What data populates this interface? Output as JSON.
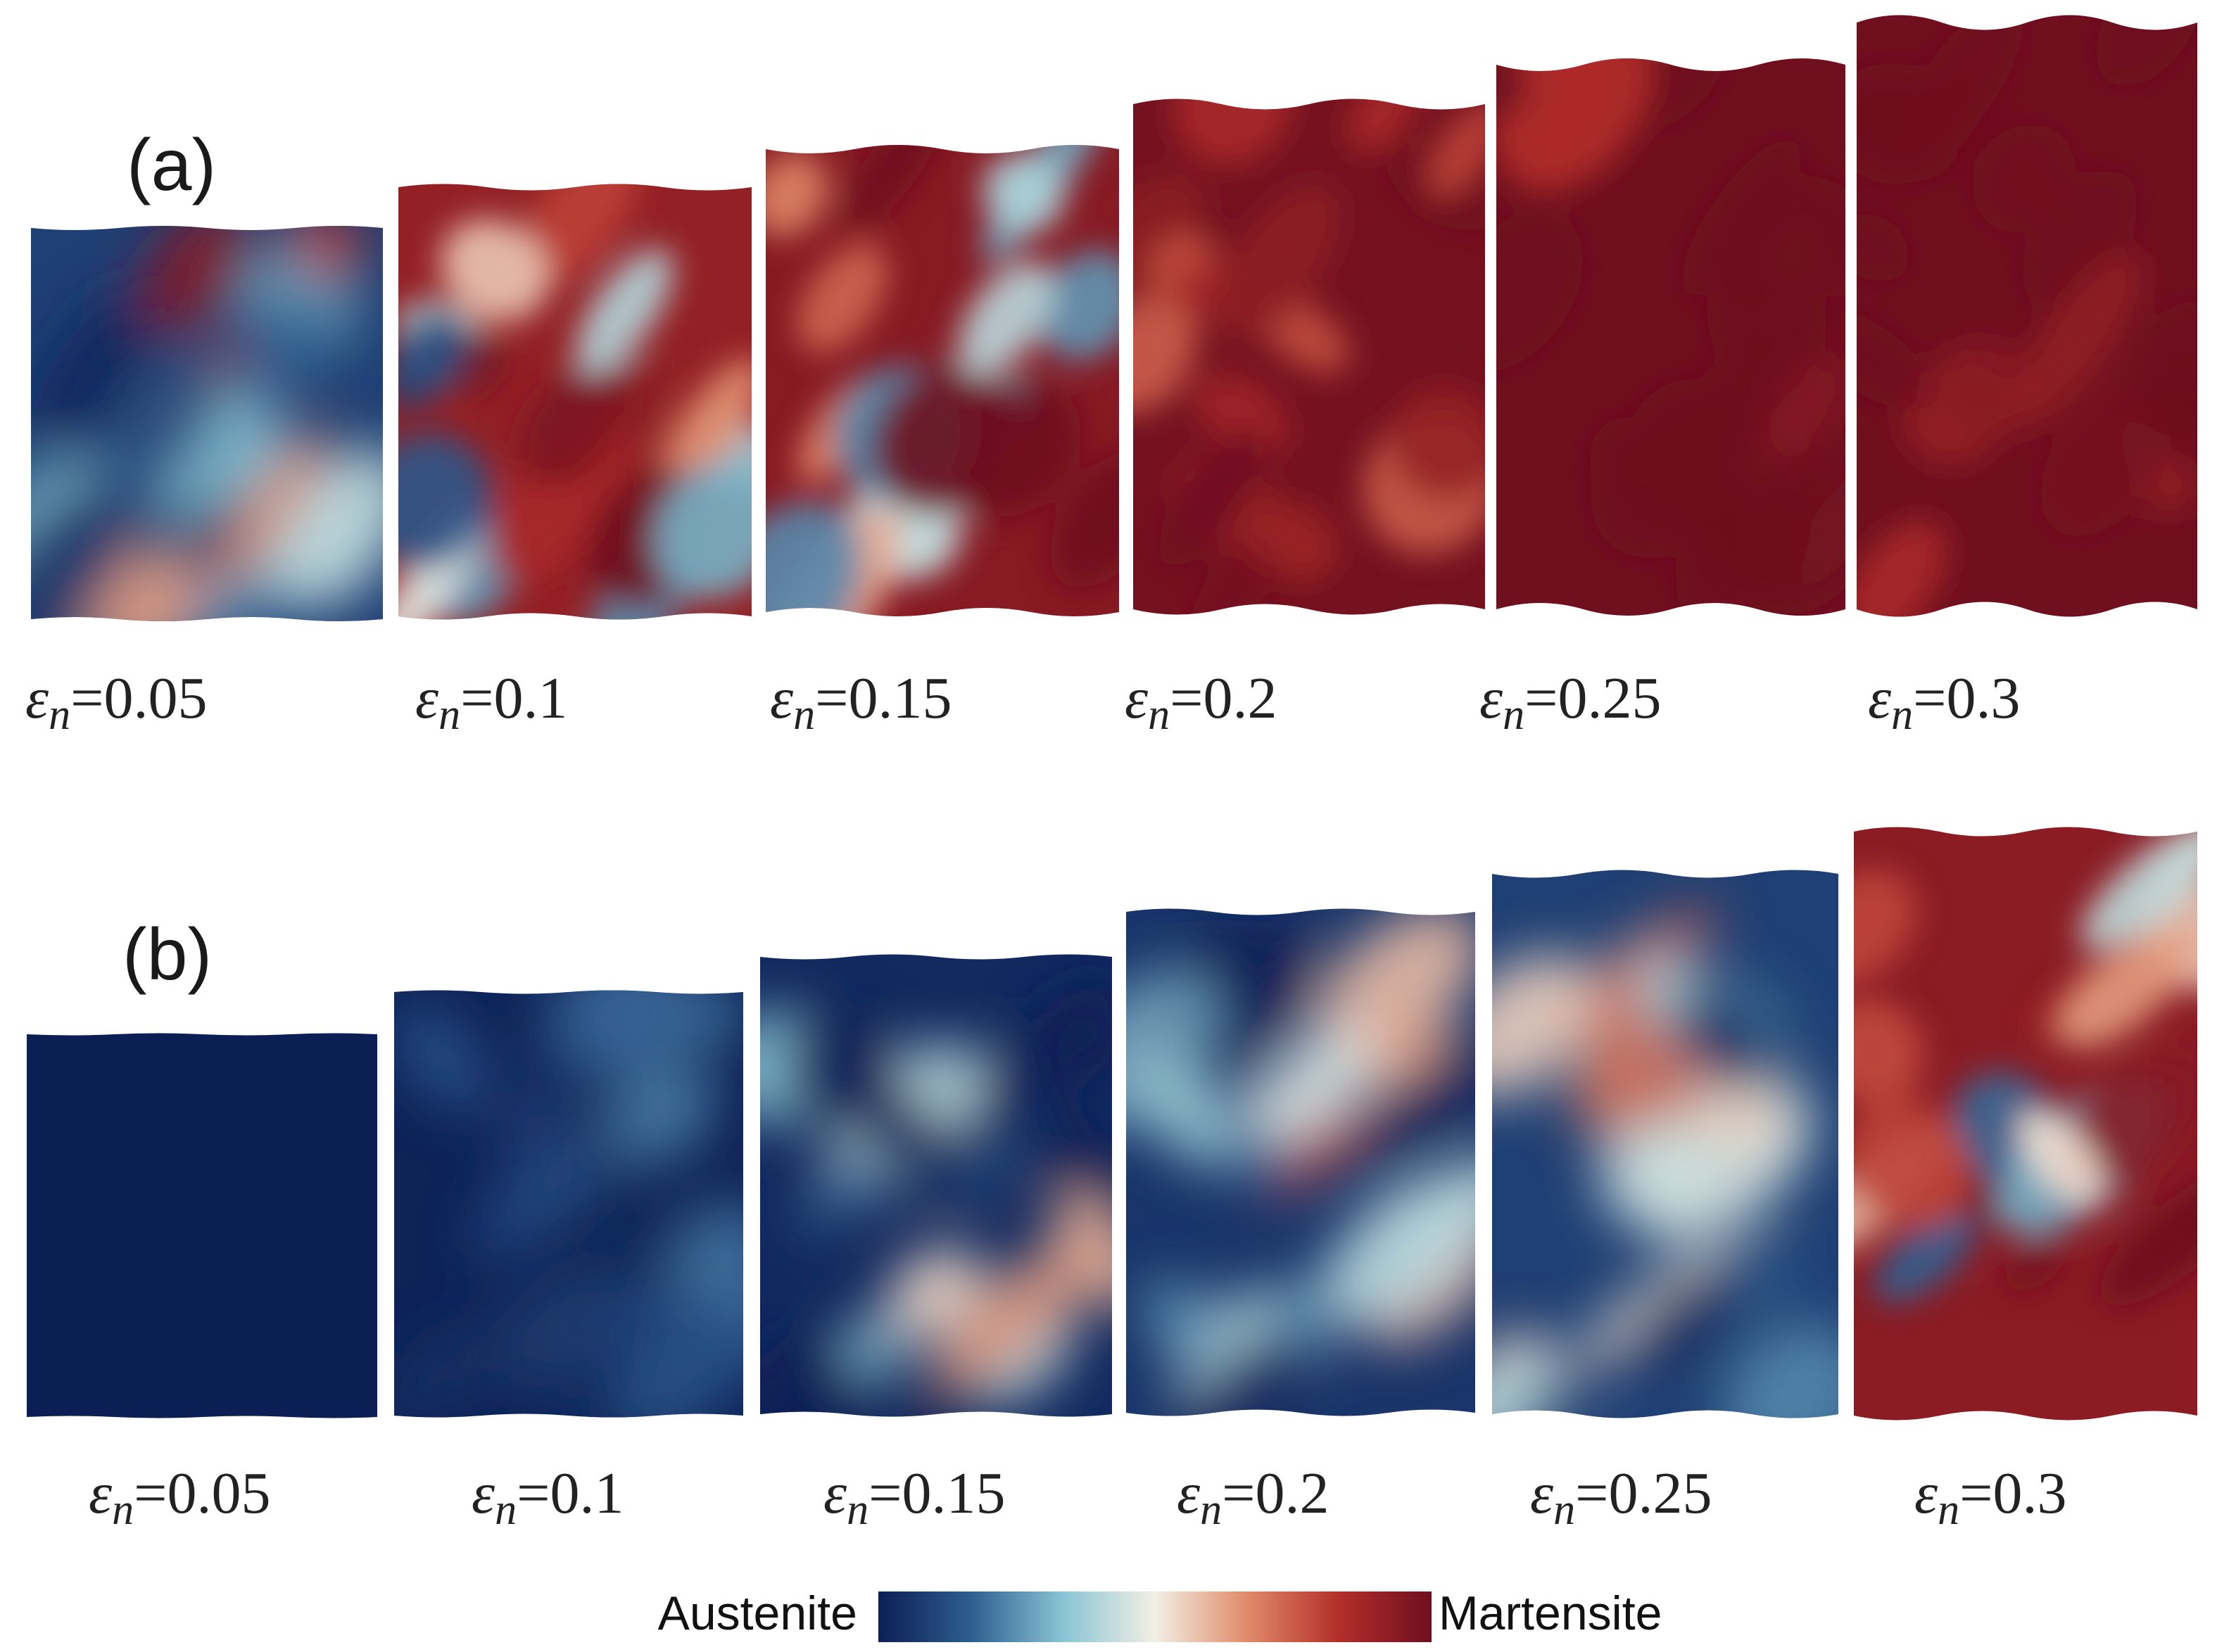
{
  "panels": [
    {
      "label": "(a)",
      "snapshots": [
        {
          "strain_symbol": "ε",
          "strain_subscript": "n",
          "strain_value": "=0.05",
          "martensite_fraction": 0.45
        },
        {
          "strain_symbol": "ε",
          "strain_subscript": "n",
          "strain_value": "=0.1",
          "martensite_fraction": 0.55
        },
        {
          "strain_symbol": "ε",
          "strain_subscript": "n",
          "strain_value": "=0.15",
          "martensite_fraction": 0.7
        },
        {
          "strain_symbol": "ε",
          "strain_subscript": "n",
          "strain_value": "=0.2",
          "martensite_fraction": 0.92
        },
        {
          "strain_symbol": "ε",
          "strain_subscript": "n",
          "strain_value": "=0.25",
          "martensite_fraction": 0.97
        },
        {
          "strain_symbol": "ε",
          "strain_subscript": "n",
          "strain_value": "=0.3",
          "martensite_fraction": 0.98
        }
      ]
    },
    {
      "label": "(b)",
      "snapshots": [
        {
          "strain_symbol": "ε",
          "strain_subscript": "n",
          "strain_value": "=0.05",
          "martensite_fraction": 0.0
        },
        {
          "strain_symbol": "ε",
          "strain_subscript": "n",
          "strain_value": "=0.1",
          "martensite_fraction": 0.05
        },
        {
          "strain_symbol": "ε",
          "strain_subscript": "n",
          "strain_value": "=0.15",
          "martensite_fraction": 0.15
        },
        {
          "strain_symbol": "ε",
          "strain_subscript": "n",
          "strain_value": "=0.2",
          "martensite_fraction": 0.3
        },
        {
          "strain_symbol": "ε",
          "strain_subscript": "n",
          "strain_value": "=0.25",
          "martensite_fraction": 0.45
        },
        {
          "strain_symbol": "ε",
          "strain_subscript": "n",
          "strain_value": "=0.3",
          "martensite_fraction": 0.65
        }
      ]
    }
  ],
  "colorbar": {
    "left_label": "Austenite",
    "right_label": "Martensite",
    "colors": [
      "#0c1f55",
      "#2f5d8f",
      "#88c4d4",
      "#f2efe4",
      "#e08a6a",
      "#b32e2a",
      "#6e0f1f"
    ]
  }
}
